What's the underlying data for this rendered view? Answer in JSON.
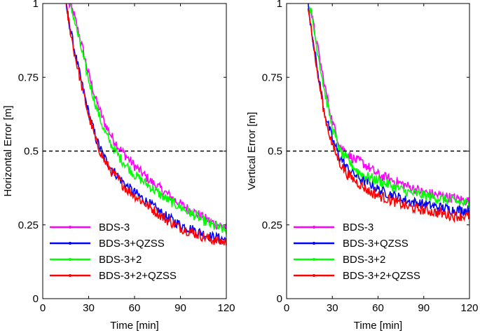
{
  "chart_data": [
    {
      "type": "line",
      "title": "",
      "xlabel": "Time [min]",
      "ylabel": "Horizontal Error [m]",
      "xlim": [
        0,
        120
      ],
      "ylim": [
        0,
        1
      ],
      "xticks": [
        0,
        30,
        60,
        90,
        120
      ],
      "yticks": [
        0,
        0.25,
        0.5,
        0.75,
        1
      ],
      "ytick_labels": [
        "0",
        "0.25",
        "0.5",
        "0.75",
        "1"
      ],
      "grid": false,
      "legend_position": "bottom-left",
      "reference_line": {
        "y": 0.5,
        "style": "dashed"
      },
      "series": [
        {
          "name": "BDS-3",
          "color": "#ff00ff",
          "x": [
            17,
            20,
            25,
            30,
            35,
            40,
            45,
            50,
            55,
            60,
            70,
            80,
            90,
            100,
            110,
            120
          ],
          "y": [
            1.0,
            0.97,
            0.87,
            0.76,
            0.67,
            0.6,
            0.55,
            0.51,
            0.48,
            0.45,
            0.4,
            0.36,
            0.32,
            0.29,
            0.26,
            0.24
          ]
        },
        {
          "name": "BDS-3+QZSS",
          "color": "#0000ff",
          "x": [
            15,
            20,
            25,
            30,
            35,
            40,
            45,
            50,
            55,
            60,
            70,
            80,
            90,
            100,
            110,
            120
          ],
          "y": [
            1.0,
            0.86,
            0.74,
            0.63,
            0.54,
            0.48,
            0.44,
            0.41,
            0.38,
            0.36,
            0.32,
            0.28,
            0.25,
            0.23,
            0.21,
            0.2
          ]
        },
        {
          "name": "BDS-3+2",
          "color": "#00ff00",
          "x": [
            17,
            20,
            25,
            30,
            35,
            40,
            45,
            50,
            55,
            60,
            70,
            80,
            90,
            100,
            110,
            120
          ],
          "y": [
            1.0,
            0.96,
            0.85,
            0.74,
            0.65,
            0.57,
            0.52,
            0.48,
            0.45,
            0.42,
            0.38,
            0.34,
            0.31,
            0.28,
            0.25,
            0.23
          ]
        },
        {
          "name": "BDS-3+2+QZSS",
          "color": "#ff0000",
          "x": [
            15,
            20,
            25,
            30,
            35,
            40,
            45,
            50,
            55,
            60,
            70,
            80,
            90,
            100,
            110,
            120
          ],
          "y": [
            1.0,
            0.85,
            0.73,
            0.62,
            0.53,
            0.47,
            0.43,
            0.4,
            0.37,
            0.35,
            0.31,
            0.27,
            0.24,
            0.22,
            0.2,
            0.19
          ]
        }
      ]
    },
    {
      "type": "line",
      "title": "",
      "xlabel": "Time [min]",
      "ylabel": "Vertical Error [m]",
      "xlim": [
        0,
        120
      ],
      "ylim": [
        0,
        1
      ],
      "xticks": [
        0,
        30,
        60,
        90,
        120
      ],
      "yticks": [
        0,
        0.25,
        0.5,
        0.75,
        1
      ],
      "ytick_labels": [
        "0",
        "0.25",
        "0.5",
        "0.75",
        "1"
      ],
      "grid": false,
      "legend_position": "bottom-left",
      "reference_line": {
        "y": 0.5,
        "style": "dashed"
      },
      "series": [
        {
          "name": "BDS-3",
          "color": "#ff00ff",
          "x": [
            15,
            20,
            25,
            30,
            35,
            40,
            45,
            50,
            55,
            60,
            70,
            80,
            90,
            100,
            110,
            120
          ],
          "y": [
            1.0,
            0.86,
            0.72,
            0.6,
            0.52,
            0.49,
            0.47,
            0.46,
            0.44,
            0.42,
            0.4,
            0.38,
            0.36,
            0.35,
            0.34,
            0.33
          ]
        },
        {
          "name": "BDS-3+QZSS",
          "color": "#0000ff",
          "x": [
            14,
            20,
            25,
            30,
            35,
            40,
            45,
            50,
            55,
            60,
            70,
            80,
            90,
            100,
            110,
            120
          ],
          "y": [
            1.0,
            0.78,
            0.63,
            0.54,
            0.48,
            0.44,
            0.42,
            0.4,
            0.39,
            0.37,
            0.35,
            0.33,
            0.32,
            0.31,
            0.3,
            0.3
          ]
        },
        {
          "name": "BDS-3+2",
          "color": "#00ff00",
          "x": [
            15,
            20,
            25,
            30,
            35,
            40,
            45,
            50,
            55,
            60,
            70,
            80,
            90,
            100,
            110,
            120
          ],
          "y": [
            1.0,
            0.85,
            0.7,
            0.58,
            0.5,
            0.47,
            0.44,
            0.42,
            0.41,
            0.4,
            0.38,
            0.36,
            0.35,
            0.34,
            0.33,
            0.32
          ]
        },
        {
          "name": "BDS-3+2+QZSS",
          "color": "#ff0000",
          "x": [
            14,
            20,
            25,
            30,
            35,
            40,
            45,
            50,
            55,
            60,
            70,
            80,
            90,
            100,
            110,
            120
          ],
          "y": [
            1.0,
            0.77,
            0.62,
            0.52,
            0.46,
            0.42,
            0.4,
            0.38,
            0.36,
            0.35,
            0.33,
            0.31,
            0.3,
            0.29,
            0.28,
            0.28
          ]
        }
      ]
    }
  ]
}
